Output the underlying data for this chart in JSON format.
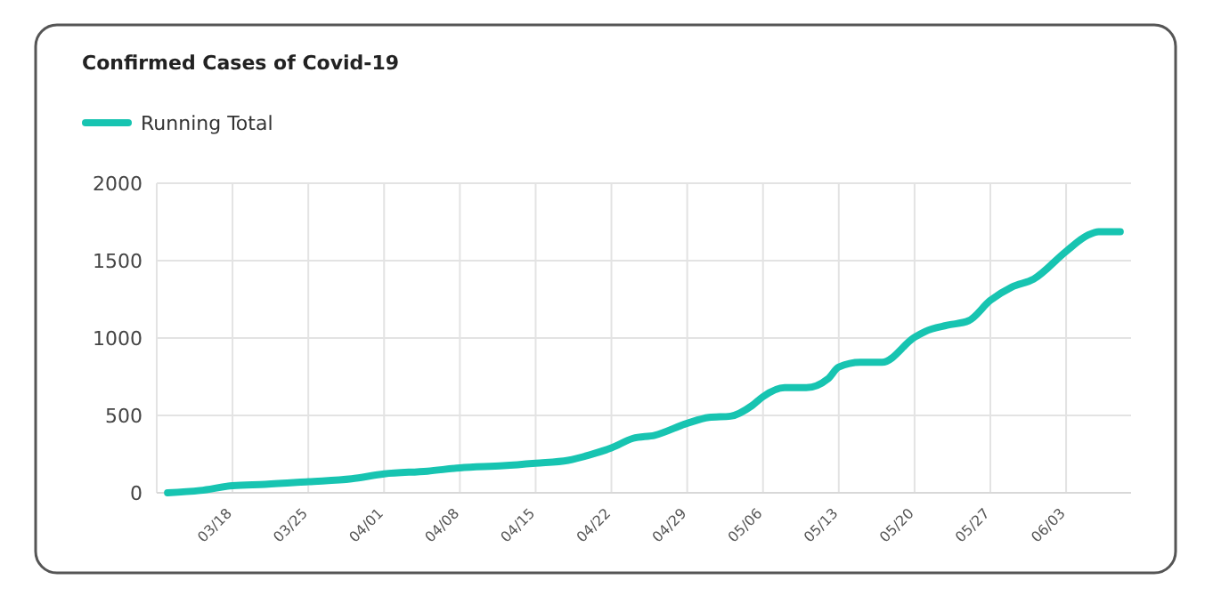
{
  "chart_data": {
    "type": "line",
    "title": "Confirmed Cases of Covid-19",
    "x": [
      "--03-12",
      "--03-15",
      "--03-18",
      "--03-21",
      "--03-25",
      "--03-29",
      "--04-01",
      "--04-05",
      "--04-08",
      "--04-12",
      "--04-15",
      "--04-18",
      "--04-20",
      "--04-22",
      "--04-24",
      "--04-26",
      "--04-29",
      "--05-01",
      "--05-03",
      "--05-05",
      "--05-06",
      "--05-08",
      "--05-10",
      "--05-12",
      "--05-13",
      "--05-15",
      "--05-17",
      "--05-20",
      "--05-21",
      "--05-23",
      "--05-25",
      "--05-27",
      "--05-29",
      "--05-31",
      "--06-03",
      "--06-05",
      "--06-06",
      "--06-08"
    ],
    "series": [
      {
        "name": "Running Total",
        "color": "#17c4b1",
        "values": [
          0,
          15,
          46,
          55,
          72,
          90,
          122,
          140,
          161,
          175,
          191,
          210,
          245,
          290,
          352,
          372,
          449,
          487,
          495,
          564,
          621,
          679,
          679,
          736,
          812,
          843,
          843,
          1005,
          1043,
          1082,
          1112,
          1243,
          1330,
          1381,
          1560,
          1664,
          1687,
          1687
        ]
      }
    ],
    "xlim": [
      "--03-11",
      "--06-09"
    ],
    "xticks": [
      {
        "value": "--03-18",
        "label": "03/18"
      },
      {
        "value": "--03-25",
        "label": "03/25"
      },
      {
        "value": "--04-01",
        "label": "04/01"
      },
      {
        "value": "--04-08",
        "label": "04/08"
      },
      {
        "value": "--04-15",
        "label": "04/15"
      },
      {
        "value": "--04-22",
        "label": "04/22"
      },
      {
        "value": "--04-29",
        "label": "04/29"
      },
      {
        "value": "--05-06",
        "label": "05/06"
      },
      {
        "value": "--05-13",
        "label": "05/13"
      },
      {
        "value": "--05-20",
        "label": "05/20"
      },
      {
        "value": "--05-27",
        "label": "05/27"
      },
      {
        "value": "--06-03",
        "label": "06/03"
      }
    ],
    "ylim": [
      0,
      2000
    ],
    "yticks": [
      0,
      500,
      1000,
      1500,
      2000
    ],
    "grid": true,
    "legend": "top left",
    "marker": "none",
    "line_style": "solid"
  }
}
